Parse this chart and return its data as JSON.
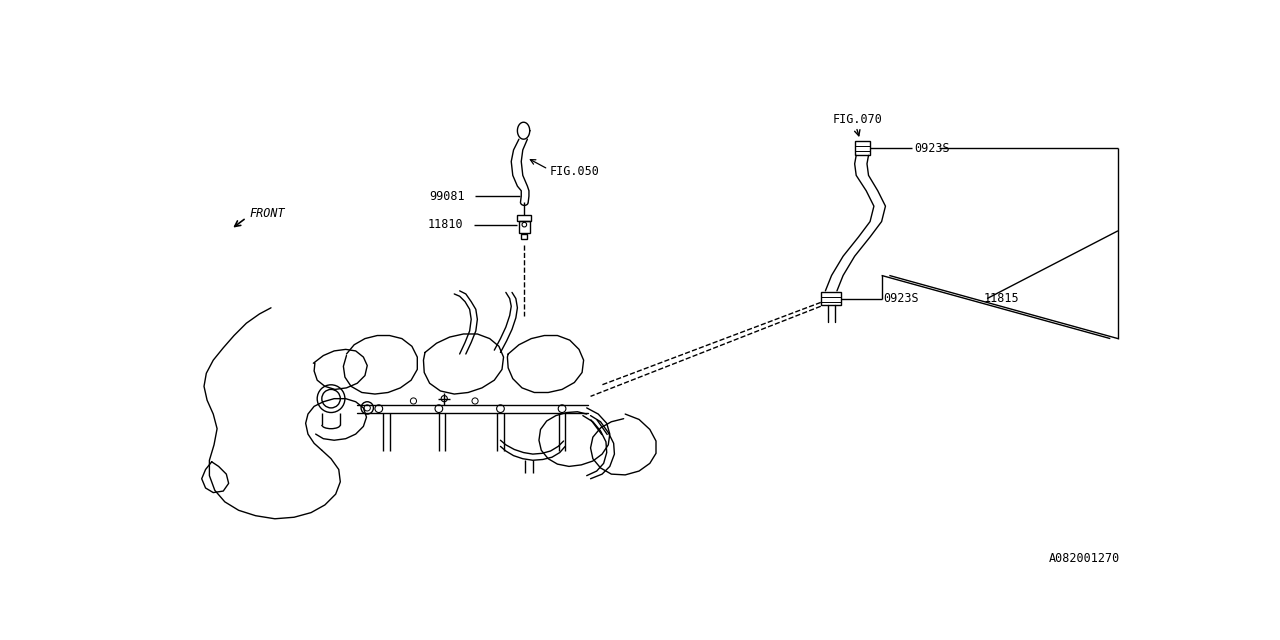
{
  "bg_color": "#ffffff",
  "line_color": "#000000",
  "fig_width": 12.8,
  "fig_height": 6.4,
  "labels": {
    "fig050": "FIG.050",
    "fig070": "FIG.070",
    "part_99081": "99081",
    "part_11810": "11810",
    "part_11815": "11815",
    "part_0923S_top": "0923S",
    "part_0923S_mid": "0923S",
    "front": "FRONT",
    "diagram_id": "A082001270"
  },
  "font_size": 8.5,
  "line_width": 1.0
}
